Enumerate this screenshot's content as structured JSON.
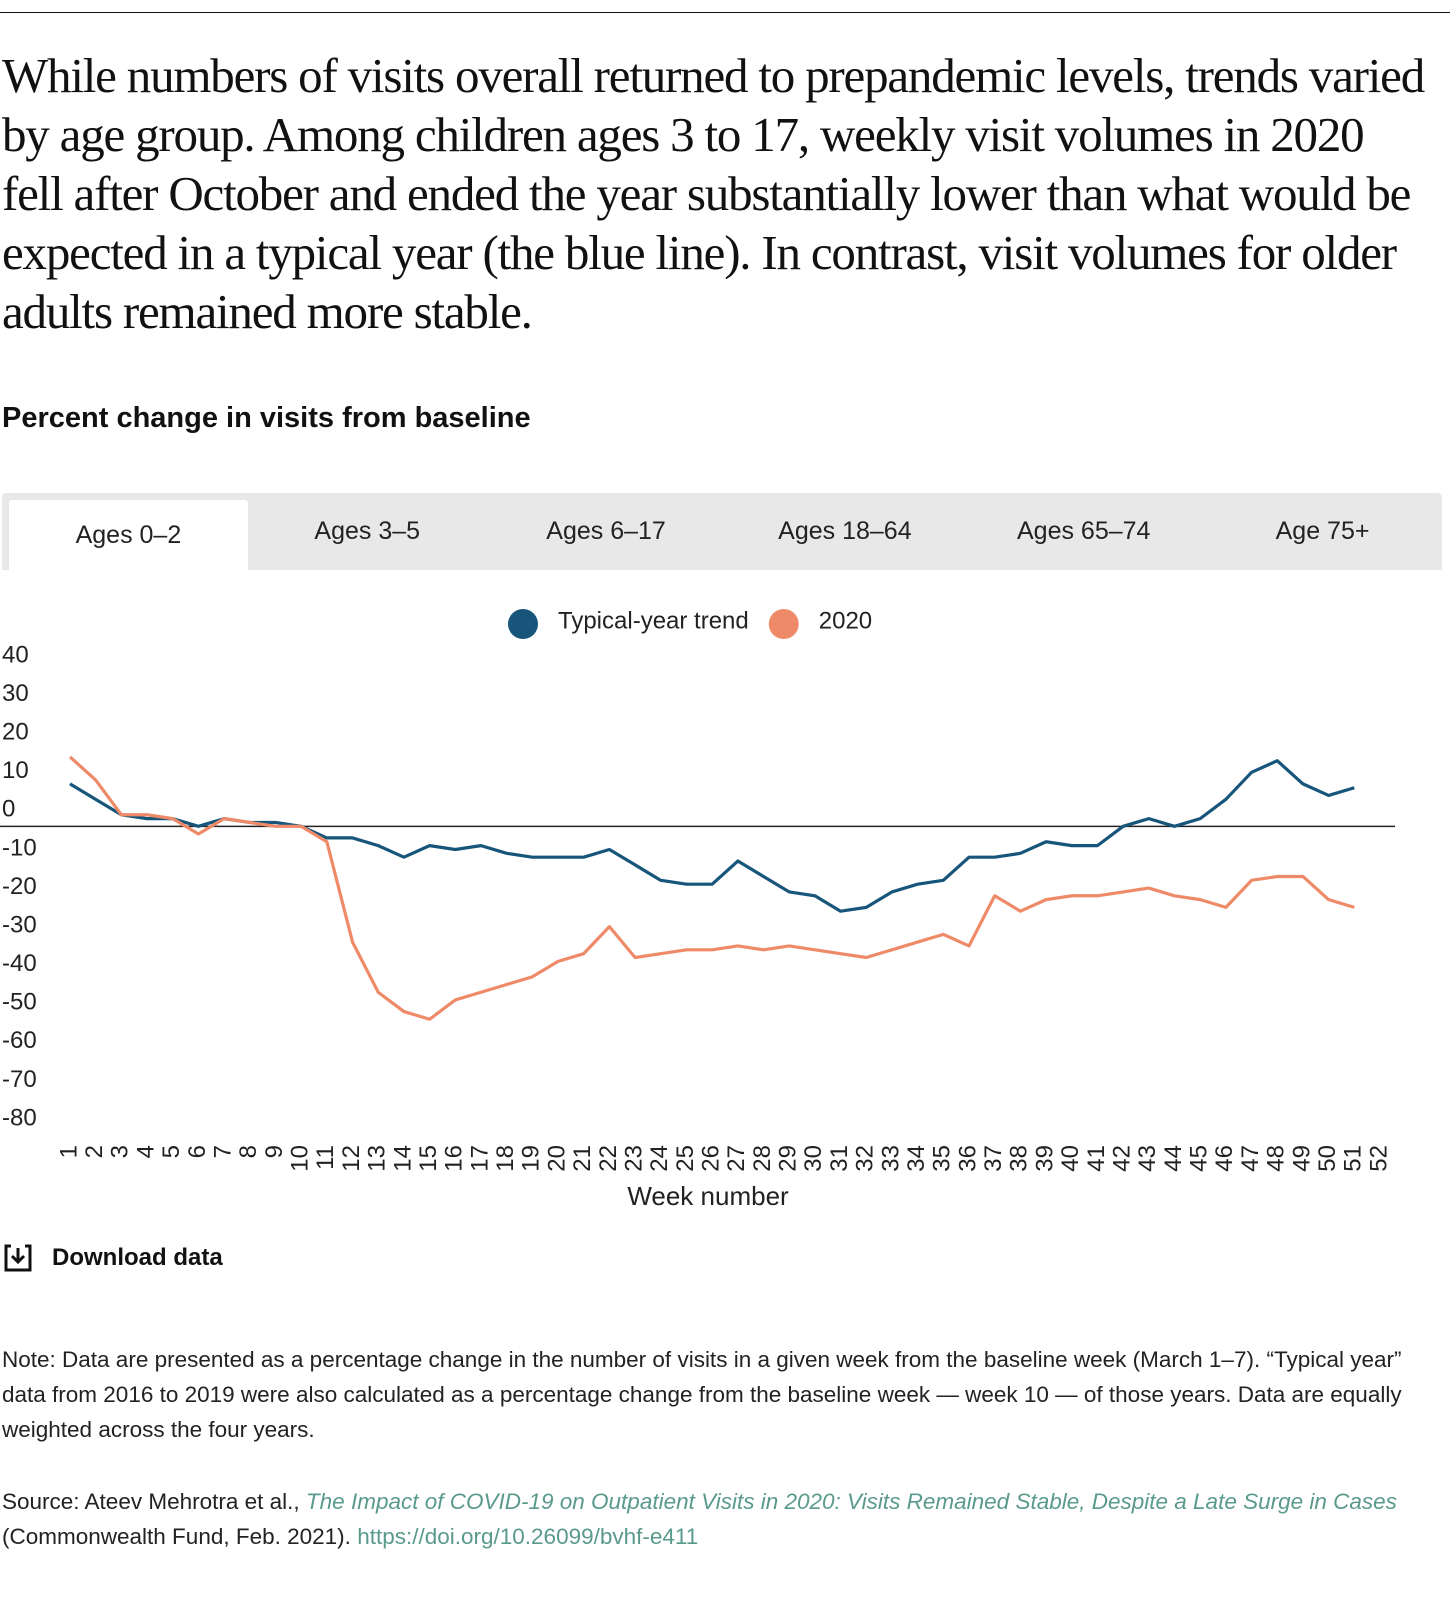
{
  "intro": "While numbers of visits overall returned to prepandemic levels, trends varied by age group. Among children ages 3 to 17, weekly visit volumes in 2020 fell after October and ended the year substantially lower than what would be expected in a typical year (the blue line). In contrast, visit volumes for older adults remained more stable.",
  "tabs": [
    "Ages 0–2",
    "Ages 3–5",
    "Ages 6–17",
    "Ages 18–64",
    "Ages 65–74",
    "Age 75+"
  ],
  "active_tab": 0,
  "chart_data": {
    "type": "line",
    "title": "Percent change in visits from baseline",
    "xlabel": "Week number",
    "x": [
      1,
      2,
      3,
      4,
      5,
      6,
      7,
      8,
      9,
      10,
      11,
      12,
      13,
      14,
      15,
      16,
      17,
      18,
      19,
      20,
      21,
      22,
      23,
      24,
      25,
      26,
      27,
      28,
      29,
      30,
      31,
      32,
      33,
      34,
      35,
      36,
      37,
      38,
      39,
      40,
      41,
      42,
      43,
      44,
      45,
      46,
      47,
      48,
      49,
      50,
      51,
      52
    ],
    "xlim": [
      1,
      52
    ],
    "ylim": [
      -80,
      40
    ],
    "yticks": [
      40,
      30,
      20,
      10,
      0,
      -10,
      -20,
      -30,
      -40,
      -50,
      -60,
      -70,
      -80
    ],
    "grid": false,
    "legend": "top",
    "series": [
      {
        "name": "Typical-year trend",
        "color": "#17557a",
        "values": [
          11,
          7,
          3,
          2,
          2,
          0,
          2,
          1,
          1,
          0,
          -3,
          -3,
          -5,
          -8,
          -5,
          -6,
          -5,
          -7,
          -8,
          -8,
          -8,
          -6,
          -10,
          -14,
          -15,
          -15,
          -9,
          -13,
          -17,
          -18,
          -22,
          -21,
          -17,
          -15,
          -14,
          -8,
          -8,
          -7,
          -4,
          -5,
          -5,
          0,
          2,
          0,
          2,
          7,
          14,
          17,
          11,
          8,
          10,
          null
        ]
      },
      {
        "name": "2020",
        "color": "#ef8a68",
        "values": [
          18,
          12,
          3,
          3,
          2,
          -2,
          2,
          1,
          0,
          0,
          -4,
          -30,
          -43,
          -48,
          -50,
          -45,
          -43,
          -41,
          -39,
          -35,
          -33,
          -26,
          -34,
          -33,
          -32,
          -32,
          -31,
          -32,
          -31,
          -32,
          -33,
          -34,
          -32,
          -30,
          -28,
          -31,
          -18,
          -22,
          -19,
          -18,
          -18,
          -17,
          -16,
          -18,
          -19,
          -21,
          -14,
          -13,
          -13,
          -19,
          -21,
          null
        ]
      }
    ]
  },
  "download": "Download data",
  "note": "Note: Data are presented as a percentage change in the number of visits in a given week from the baseline week (March 1–7). “Typical year” data from 2016 to 2019 were also calculated as a percentage change from the baseline week — week 10 — of those years. Data are equally weighted across the four years.",
  "source": {
    "prefix": "Source: Ateev Mehrotra et al.,",
    "title": "The Impact of COVID-19 on Outpatient Visits in 2020: Visits Remained Stable, Despite a Late Surge in Cases",
    "publisher": "(Commonwealth Fund, Feb. 2021).",
    "url": "https://doi.org/10.26099/bvhf-e411"
  }
}
